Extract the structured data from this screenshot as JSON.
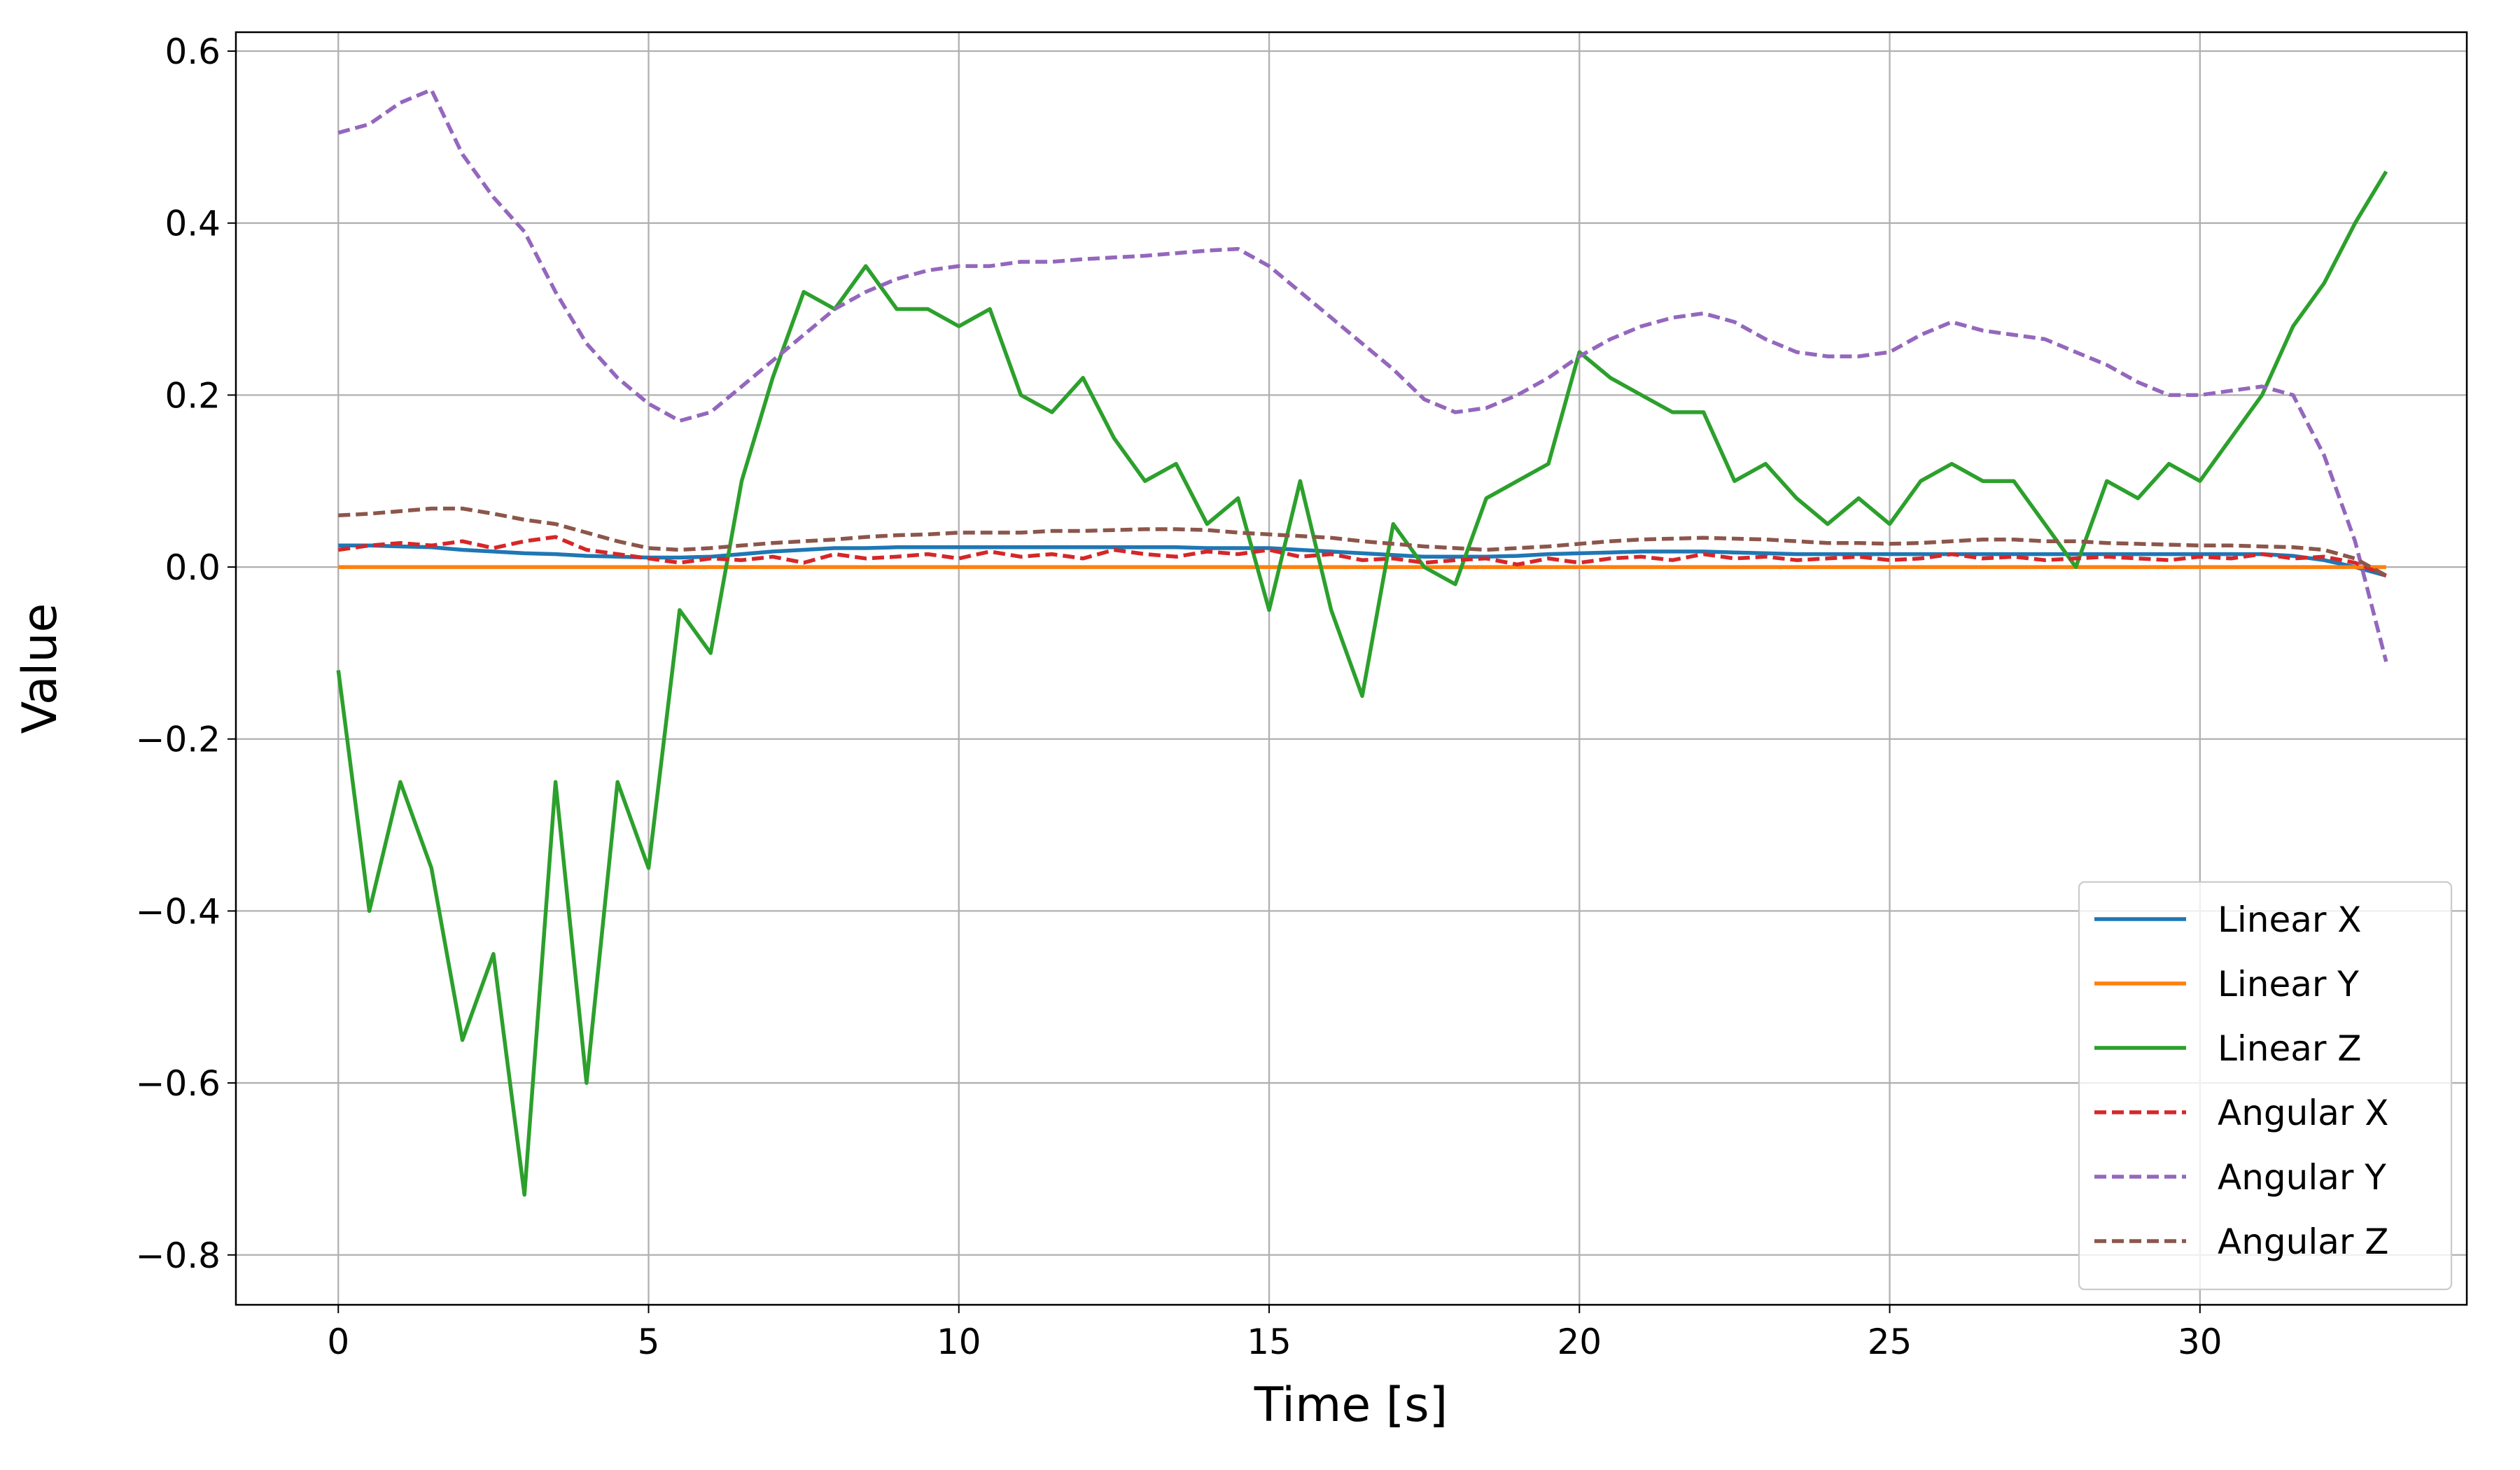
{
  "chart_data": {
    "type": "line",
    "x_label": "Time [s]",
    "y_label": "Value",
    "x": [
      0,
      0.5,
      1,
      1.5,
      2,
      2.5,
      3,
      3.5,
      4,
      4.5,
      5,
      5.5,
      6,
      6.5,
      7,
      7.5,
      8,
      8.5,
      9,
      9.5,
      10,
      10.5,
      11,
      11.5,
      12,
      12.5,
      13,
      13.5,
      14,
      14.5,
      15,
      15.5,
      16,
      16.5,
      17,
      17.5,
      18,
      18.5,
      19,
      19.5,
      20,
      20.5,
      21,
      21.5,
      22,
      22.5,
      23,
      23.5,
      24,
      24.5,
      25,
      25.5,
      26,
      26.5,
      27,
      27.5,
      28,
      28.5,
      29,
      29.5,
      30,
      30.5,
      31,
      31.5,
      32,
      32.5,
      33
    ],
    "series": [
      {
        "name": "Linear X",
        "color": "#1f77b4",
        "linestyle": "solid",
        "values": [
          0.025,
          0.025,
          0.024,
          0.023,
          0.02,
          0.018,
          0.016,
          0.015,
          0.013,
          0.012,
          0.011,
          0.011,
          0.012,
          0.015,
          0.018,
          0.02,
          0.022,
          0.022,
          0.023,
          0.023,
          0.023,
          0.023,
          0.023,
          0.023,
          0.023,
          0.023,
          0.023,
          0.023,
          0.022,
          0.022,
          0.022,
          0.02,
          0.018,
          0.016,
          0.014,
          0.012,
          0.012,
          0.012,
          0.013,
          0.015,
          0.016,
          0.017,
          0.018,
          0.018,
          0.018,
          0.017,
          0.016,
          0.015,
          0.015,
          0.015,
          0.015,
          0.015,
          0.015,
          0.015,
          0.015,
          0.015,
          0.015,
          0.015,
          0.015,
          0.015,
          0.015,
          0.015,
          0.015,
          0.013,
          0.008,
          0,
          -0.01
        ]
      },
      {
        "name": "Linear Y",
        "color": "#ff7f0e",
        "linestyle": "solid",
        "values": [
          0,
          0,
          0,
          0,
          0,
          0,
          0,
          0,
          0,
          0,
          0,
          0,
          0,
          0,
          0,
          0,
          0,
          0,
          0,
          0,
          0,
          0,
          0,
          0,
          0,
          0,
          0,
          0,
          0,
          0,
          0,
          0,
          0,
          0,
          0,
          0,
          0,
          0,
          0,
          0,
          0,
          0,
          0,
          0,
          0,
          0,
          0,
          0,
          0,
          0,
          0,
          0,
          0,
          0,
          0,
          0,
          0,
          0,
          0,
          0,
          0,
          0,
          0,
          0,
          0,
          0,
          0
        ]
      },
      {
        "name": "Linear Z",
        "color": "#2ca02c",
        "linestyle": "solid",
        "values": [
          -0.12,
          -0.4,
          -0.25,
          -0.35,
          -0.55,
          -0.45,
          -0.73,
          -0.25,
          -0.6,
          -0.25,
          -0.35,
          -0.05,
          -0.1,
          0.1,
          0.22,
          0.32,
          0.3,
          0.35,
          0.3,
          0.3,
          0.28,
          0.3,
          0.2,
          0.18,
          0.22,
          0.15,
          0.1,
          0.12,
          0.05,
          0.08,
          -0.05,
          0.1,
          -0.05,
          -0.15,
          0.05,
          0,
          -0.02,
          0.08,
          0.1,
          0.12,
          0.25,
          0.22,
          0.2,
          0.18,
          0.18,
          0.1,
          0.12,
          0.08,
          0.05,
          0.08,
          0.05,
          0.1,
          0.12,
          0.1,
          0.1,
          0.05,
          0,
          0.1,
          0.08,
          0.12,
          0.1,
          0.15,
          0.2,
          0.28,
          0.33,
          0.4,
          0.46
        ]
      },
      {
        "name": "Angular X",
        "color": "#d62728",
        "linestyle": "dashed",
        "values": [
          0.02,
          0.025,
          0.028,
          0.025,
          0.03,
          0.022,
          0.03,
          0.035,
          0.02,
          0.015,
          0.01,
          0.005,
          0.01,
          0.008,
          0.012,
          0.005,
          0.015,
          0.01,
          0.012,
          0.015,
          0.01,
          0.018,
          0.012,
          0.015,
          0.01,
          0.02,
          0.015,
          0.012,
          0.018,
          0.015,
          0.02,
          0.012,
          0.015,
          0.008,
          0.01,
          0.005,
          0.008,
          0.01,
          0.003,
          0.01,
          0.005,
          0.01,
          0.012,
          0.008,
          0.015,
          0.01,
          0.012,
          0.008,
          0.01,
          0.012,
          0.008,
          0.01,
          0.015,
          0.01,
          0.012,
          0.008,
          0.01,
          0.012,
          0.01,
          0.008,
          0.012,
          0.01,
          0.015,
          0.01,
          0.012,
          0.005,
          -0.01
        ]
      },
      {
        "name": "Angular Y",
        "color": "#9467bd",
        "linestyle": "dashed",
        "values": [
          0.505,
          0.515,
          0.54,
          0.555,
          0.48,
          0.43,
          0.39,
          0.32,
          0.26,
          0.22,
          0.19,
          0.17,
          0.18,
          0.21,
          0.24,
          0.27,
          0.3,
          0.32,
          0.335,
          0.345,
          0.35,
          0.35,
          0.355,
          0.355,
          0.358,
          0.36,
          0.362,
          0.365,
          0.368,
          0.37,
          0.35,
          0.32,
          0.29,
          0.26,
          0.23,
          0.195,
          0.18,
          0.185,
          0.2,
          0.22,
          0.245,
          0.265,
          0.28,
          0.29,
          0.295,
          0.285,
          0.265,
          0.25,
          0.245,
          0.245,
          0.25,
          0.27,
          0.285,
          0.275,
          0.27,
          0.265,
          0.25,
          0.235,
          0.215,
          0.2,
          0.2,
          0.205,
          0.21,
          0.2,
          0.13,
          0.03,
          -0.11
        ]
      },
      {
        "name": "Angular Z",
        "color": "#8c564b",
        "linestyle": "dashed",
        "values": [
          0.06,
          0.062,
          0.065,
          0.068,
          0.068,
          0.062,
          0.055,
          0.05,
          0.04,
          0.03,
          0.022,
          0.02,
          0.022,
          0.025,
          0.028,
          0.03,
          0.032,
          0.035,
          0.037,
          0.038,
          0.04,
          0.04,
          0.04,
          0.042,
          0.042,
          0.043,
          0.044,
          0.044,
          0.043,
          0.04,
          0.038,
          0.036,
          0.034,
          0.03,
          0.027,
          0.024,
          0.022,
          0.02,
          0.022,
          0.024,
          0.027,
          0.03,
          0.032,
          0.033,
          0.034,
          0.033,
          0.032,
          0.03,
          0.028,
          0.028,
          0.027,
          0.028,
          0.03,
          0.032,
          0.032,
          0.03,
          0.03,
          0.028,
          0.027,
          0.026,
          0.025,
          0.025,
          0.024,
          0.023,
          0.02,
          0.01,
          -0.01
        ]
      }
    ],
    "xlim": [
      -1.65,
      34.3
    ],
    "xticks": [
      0,
      5,
      10,
      15,
      20,
      25,
      30
    ],
    "ylim": [
      -0.858,
      0.622
    ],
    "yticks": [
      {
        "value": -0.8,
        "label": "−0.8"
      },
      {
        "value": -0.6,
        "label": "−0.6"
      },
      {
        "value": -0.4,
        "label": "−0.4"
      },
      {
        "value": -0.2,
        "label": "−0.2"
      },
      {
        "value": 0,
        "label": "0.0"
      },
      0.2,
      0.4,
      0.6
    ],
    "grid": true,
    "legend": "lower right"
  }
}
